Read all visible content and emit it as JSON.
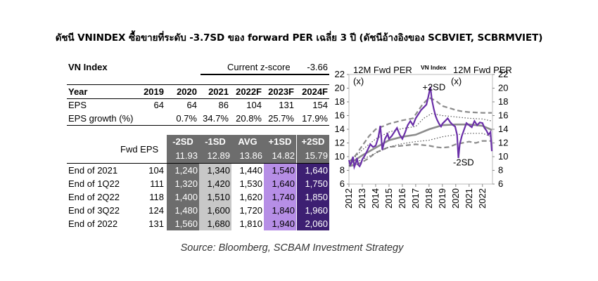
{
  "title": "ดัชนี VNINDEX ซื้อขายที่ระดับ -3.7SD ของ forward PER เฉลี่ย 3 ปี (ดัชนีอ้างอิงของ SCBVIET, SCBRMVIET)",
  "source": "Source: Bloomberg, SCBAM Investment Strategy",
  "table": {
    "index_name": "VN Index",
    "zscore_label": "Current z-score",
    "zscore_value": "-3.66",
    "year_label": "Year",
    "years": [
      "2019",
      "2020",
      "2021",
      "2022F",
      "2023F",
      "2024F"
    ],
    "eps_label": "EPS",
    "eps": [
      "64",
      "64",
      "86",
      "104",
      "131",
      "154"
    ],
    "growth_label": "EPS growth (%)",
    "growth": [
      "",
      "0.7%",
      "34.7%",
      "20.8%",
      "25.7%",
      "17.9%"
    ],
    "fwd_eps_label": "Fwd EPS",
    "band_headers": [
      "-2SD",
      "-1SD",
      "AVG",
      "+1SD",
      "+2SD"
    ],
    "band_per": [
      "11.93",
      "12.89",
      "13.86",
      "14.82",
      "15.79"
    ],
    "rows": [
      {
        "label": "End of 2021",
        "fwd_eps": "104",
        "values": [
          "1,240",
          "1,340",
          "1,440",
          "1,540",
          "1,640"
        ]
      },
      {
        "label": "End of 1Q22",
        "fwd_eps": "111",
        "values": [
          "1,320",
          "1,420",
          "1,530",
          "1,640",
          "1,750"
        ]
      },
      {
        "label": "End of 2Q22",
        "fwd_eps": "118",
        "values": [
          "1,400",
          "1,510",
          "1,620",
          "1,740",
          "1,850"
        ]
      },
      {
        "label": "End of 3Q22",
        "fwd_eps": "124",
        "values": [
          "1,480",
          "1,600",
          "1,720",
          "1,840",
          "1,960"
        ]
      },
      {
        "label": "End of 2022",
        "fwd_eps": "131",
        "values": [
          "1,560",
          "1,680",
          "1,810",
          "1,940",
          "2,060"
        ]
      }
    ]
  },
  "chart_data": {
    "type": "line",
    "title": "VN Index",
    "ylabel_left": "12M Fwd PER, (x)",
    "ylabel_right": "12M Fwd PER, (x)",
    "ylim": [
      6,
      22
    ],
    "y_ticks": [
      6,
      8,
      10,
      12,
      14,
      16,
      18,
      20,
      22
    ],
    "xlim": [
      2012,
      2022.75
    ],
    "x_ticks": [
      "2012",
      "2013",
      "2014",
      "2015",
      "2016",
      "2017",
      "2018",
      "2019",
      "2020",
      "2021",
      "2022"
    ],
    "annotations": [
      {
        "text": "+2SD",
        "x": 2017.5,
        "y": 19.7
      },
      {
        "text": "-2SD",
        "x": 2019.8,
        "y": 8.7
      }
    ],
    "colors": {
      "per": "#6a2fa8",
      "avg": "#8c8c8c",
      "sd2": "#8c8c8c",
      "sd1": "#555555"
    },
    "series": [
      {
        "name": "Fwd PER",
        "style": "solid-purple",
        "x": [
          2012.0,
          2012.1,
          2012.2,
          2012.3,
          2012.4,
          2012.5,
          2012.6,
          2012.7,
          2012.8,
          2012.9,
          2013.0,
          2013.2,
          2013.4,
          2013.6,
          2013.8,
          2014.0,
          2014.2,
          2014.35,
          2014.5,
          2014.7,
          2014.9,
          2015.0,
          2015.2,
          2015.4,
          2015.6,
          2015.8,
          2016.0,
          2016.2,
          2016.4,
          2016.6,
          2016.8,
          2017.0,
          2017.2,
          2017.4,
          2017.6,
          2017.8,
          2017.95,
          2018.1,
          2018.2,
          2018.35,
          2018.5,
          2018.6,
          2018.75,
          2018.9,
          2019.0,
          2019.2,
          2019.4,
          2019.6,
          2019.8,
          2019.95,
          2020.1,
          2020.2,
          2020.3,
          2020.45,
          2020.6,
          2020.8,
          2021.0,
          2021.2,
          2021.4,
          2021.6,
          2021.8,
          2022.0,
          2022.15,
          2022.3,
          2022.45,
          2022.6,
          2022.7
        ],
        "y": [
          9.5,
          8.8,
          9.2,
          10.0,
          8.5,
          9.0,
          9.8,
          8.8,
          8.6,
          9.0,
          9.6,
          10.2,
          11.0,
          11.8,
          11.4,
          11.6,
          12.8,
          14.5,
          11.0,
          12.6,
          13.3,
          12.6,
          13.0,
          13.6,
          14.2,
          13.2,
          12.6,
          13.5,
          14.6,
          15.2,
          14.6,
          15.6,
          16.2,
          16.8,
          17.2,
          17.6,
          18.8,
          20.2,
          18.4,
          17.0,
          15.9,
          15.4,
          14.8,
          14.4,
          14.8,
          15.2,
          15.6,
          15.0,
          14.6,
          14.4,
          13.2,
          9.8,
          11.8,
          13.0,
          13.8,
          14.9,
          14.6,
          14.3,
          15.2,
          14.6,
          15.0,
          14.9,
          14.2,
          13.8,
          13.2,
          13.6,
          10.8
        ]
      },
      {
        "name": "Average",
        "style": "thick-gray",
        "x": [
          2012.0,
          2013.0,
          2014.0,
          2015.0,
          2016.0,
          2017.0,
          2018.0,
          2019.0,
          2020.0,
          2021.0,
          2022.0,
          2022.7
        ],
        "y": [
          8.9,
          10.2,
          11.3,
          12.4,
          12.9,
          13.2,
          14.0,
          14.6,
          14.7,
          14.7,
          14.5,
          13.9
        ]
      },
      {
        "name": "+2SD",
        "style": "dashed-gray",
        "x": [
          2012.0,
          2012.5,
          2013.0,
          2013.5,
          2014.0,
          2015.0,
          2016.0,
          2016.8,
          2017.5,
          2018.0,
          2018.5,
          2019.0,
          2019.7,
          2020.0,
          2020.5,
          2021.0,
          2022.0,
          2022.7
        ],
        "y": [
          9.2,
          10.2,
          11.6,
          13.0,
          14.0,
          14.8,
          15.3,
          15.6,
          17.6,
          18.6,
          18.2,
          17.4,
          17.0,
          16.8,
          16.6,
          16.5,
          16.4,
          16.4
        ]
      },
      {
        "name": "-2SD",
        "style": "dashed-gray",
        "x": [
          2012.0,
          2012.5,
          2013.0,
          2013.5,
          2014.0,
          2015.0,
          2016.0,
          2017.0,
          2018.0,
          2018.5,
          2019.0,
          2019.5,
          2020.0,
          2020.5,
          2021.0,
          2021.5,
          2022.0,
          2022.7
        ],
        "y": [
          8.6,
          8.8,
          9.2,
          9.8,
          10.6,
          11.4,
          11.6,
          11.8,
          11.6,
          11.4,
          11.3,
          11.4,
          11.8,
          12.0,
          12.2,
          12.0,
          12.3,
          12.3
        ]
      },
      {
        "name": "+1SD",
        "style": "dotted",
        "x": [
          2012.0,
          2013.0,
          2014.0,
          2015.0,
          2016.0,
          2017.0,
          2017.6,
          2018.2,
          2019.0,
          2020.0,
          2021.0,
          2022.0,
          2022.7
        ],
        "y": [
          9.1,
          11.0,
          12.6,
          13.6,
          14.1,
          14.4,
          15.6,
          16.3,
          16.0,
          15.8,
          15.6,
          15.5,
          15.2
        ]
      },
      {
        "name": "-1SD",
        "style": "dotted",
        "x": [
          2012.0,
          2013.0,
          2014.0,
          2015.0,
          2016.0,
          2017.0,
          2018.0,
          2019.0,
          2020.0,
          2021.0,
          2022.0,
          2022.7
        ],
        "y": [
          8.7,
          9.6,
          10.5,
          11.4,
          11.9,
          12.2,
          12.4,
          12.9,
          13.2,
          13.4,
          13.4,
          12.9
        ]
      }
    ]
  }
}
